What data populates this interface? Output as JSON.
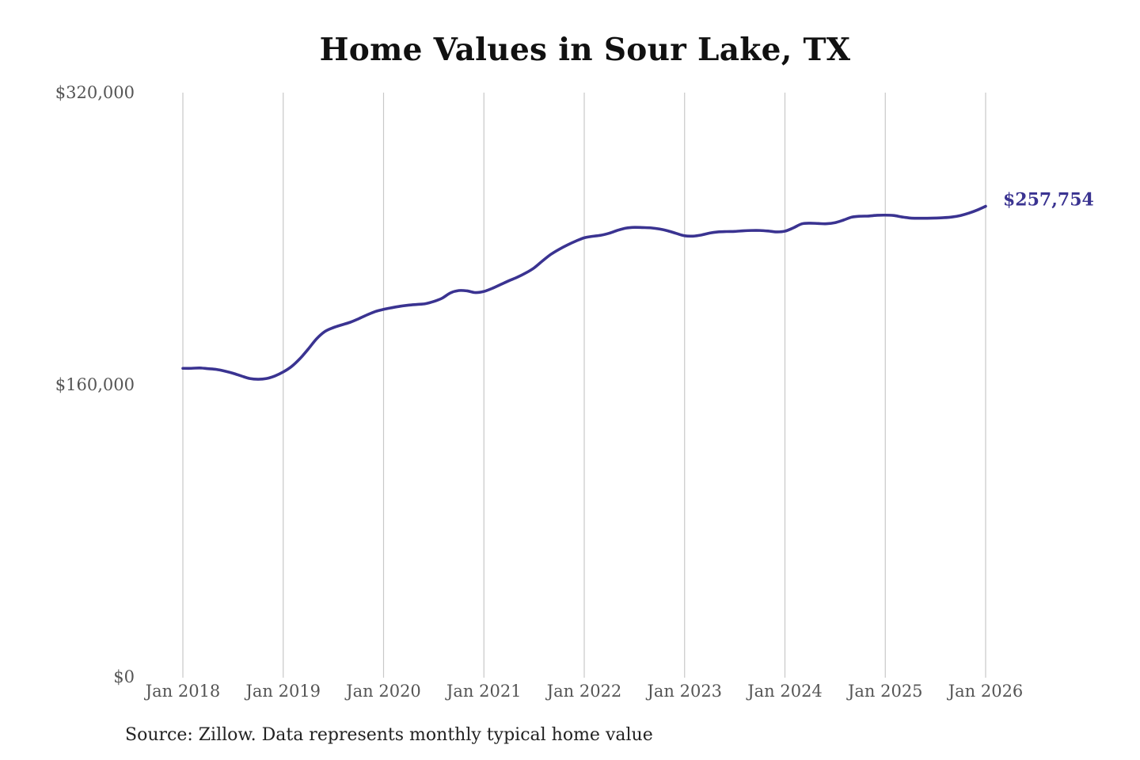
{
  "chart_data": {
    "type": "line",
    "title": "Home Values in Sour Lake, TX",
    "source": "Source: Zillow. Data represents monthly typical home value",
    "xlabel": "",
    "ylabel": "",
    "ylim": [
      0,
      320000
    ],
    "xlim": [
      "2018-01",
      "2026-01"
    ],
    "y_ticks": [
      {
        "value": 0,
        "label": "$0"
      },
      {
        "value": 160000,
        "label": "$160,000"
      },
      {
        "value": 320000,
        "label": "$320,000"
      }
    ],
    "x_ticks": [
      {
        "value": "2018-01",
        "label": "Jan 2018"
      },
      {
        "value": "2019-01",
        "label": "Jan 2019"
      },
      {
        "value": "2020-01",
        "label": "Jan 2020"
      },
      {
        "value": "2021-01",
        "label": "Jan 2021"
      },
      {
        "value": "2022-01",
        "label": "Jan 2022"
      },
      {
        "value": "2023-01",
        "label": "Jan 2023"
      },
      {
        "value": "2024-01",
        "label": "Jan 2024"
      },
      {
        "value": "2025-01",
        "label": "Jan 2025"
      },
      {
        "value": "2026-01",
        "label": "Jan 2026"
      }
    ],
    "grid": {
      "vertical": true,
      "horizontal": false
    },
    "line_color": "#3a3391",
    "end_label": "$257,754",
    "series": [
      {
        "x": [
          "2018-01",
          "2018-02",
          "2018-03",
          "2018-04",
          "2018-05",
          "2018-06",
          "2018-07",
          "2018-08",
          "2018-09",
          "2018-10",
          "2018-11",
          "2018-12",
          "2019-01",
          "2019-02",
          "2019-03",
          "2019-04",
          "2019-05",
          "2019-06",
          "2019-07",
          "2019-08",
          "2019-09",
          "2019-10",
          "2019-11",
          "2019-12",
          "2020-01",
          "2020-02",
          "2020-03",
          "2020-04",
          "2020-05",
          "2020-06",
          "2020-07",
          "2020-08",
          "2020-09",
          "2020-10",
          "2020-11",
          "2020-12",
          "2021-01",
          "2021-02",
          "2021-03",
          "2021-04",
          "2021-05",
          "2021-06",
          "2021-07",
          "2021-08",
          "2021-09",
          "2021-10",
          "2021-11",
          "2021-12",
          "2022-01",
          "2022-02",
          "2022-03",
          "2022-04",
          "2022-05",
          "2022-06",
          "2022-07",
          "2022-08",
          "2022-09",
          "2022-10",
          "2022-11",
          "2022-12",
          "2023-01",
          "2023-02",
          "2023-03",
          "2023-04",
          "2023-05",
          "2023-06",
          "2023-07",
          "2023-08",
          "2023-09",
          "2023-10",
          "2023-11",
          "2023-12",
          "2024-01",
          "2024-02",
          "2024-03",
          "2024-04",
          "2024-05",
          "2024-06",
          "2024-07",
          "2024-08",
          "2024-09",
          "2024-10",
          "2024-11",
          "2024-12",
          "2025-01",
          "2025-02",
          "2025-03",
          "2025-04",
          "2025-05",
          "2025-06",
          "2025-07",
          "2025-08",
          "2025-09",
          "2025-10",
          "2025-11",
          "2025-12",
          "2026-01"
        ],
        "y": [
          169000,
          169000,
          169200,
          168800,
          168400,
          167500,
          166300,
          164800,
          163400,
          163000,
          163400,
          164800,
          167000,
          170000,
          174300,
          179600,
          185200,
          189200,
          191300,
          192800,
          194200,
          196100,
          198200,
          200100,
          201300,
          202200,
          203000,
          203600,
          204000,
          204400,
          205600,
          207400,
          210300,
          211600,
          211400,
          210500,
          211100,
          212800,
          214900,
          217000,
          218900,
          221200,
          224000,
          227800,
          231400,
          234200,
          236600,
          238700,
          240500,
          241300,
          241900,
          243000,
          244600,
          245800,
          246200,
          246100,
          245900,
          245300,
          244300,
          242900,
          241600,
          241400,
          242000,
          243100,
          243700,
          243900,
          244000,
          244300,
          244500,
          244500,
          244200,
          243700,
          244100,
          245900,
          248100,
          248500,
          248300,
          248200,
          248800,
          250200,
          251800,
          252300,
          252400,
          252800,
          252900,
          252700,
          251900,
          251300,
          251200,
          251200,
          251300,
          251500,
          251900,
          252700,
          254000,
          255700,
          257754
        ]
      }
    ]
  }
}
